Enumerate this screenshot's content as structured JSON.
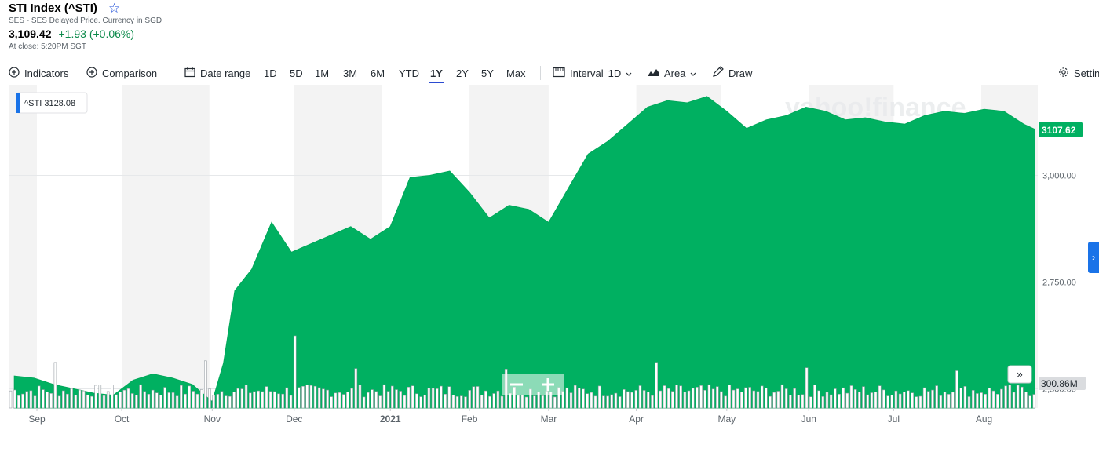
{
  "header": {
    "title": "STI Index (^STI)",
    "source": "SES - SES Delayed Price. Currency in SGD",
    "price": "3,109.42",
    "change": "+1.93 (+0.06%)",
    "close_time": "At close: 5:20PM SGT"
  },
  "toolbar": {
    "indicators": "Indicators",
    "comparison": "Comparison",
    "date_range": "Date range",
    "ranges": [
      "1D",
      "5D",
      "1M",
      "3M",
      "6M",
      "YTD",
      "1Y",
      "2Y",
      "5Y",
      "Max"
    ],
    "active_range": "1Y",
    "interval_label": "Interval",
    "interval_value": "1D",
    "chart_type": "Area",
    "draw": "Draw",
    "settings": "Settings"
  },
  "colors": {
    "area": "#00b061",
    "line": "#00a85a",
    "shade": "#f3f3f3",
    "accent": "#1d4ed8",
    "volume_fill": "#ffffff",
    "volume_stroke": "#9aa0a6"
  },
  "chart_data": {
    "type": "area",
    "series": [
      {
        "name": "^STI",
        "x": [
          "2020-08-24",
          "2020-08-31",
          "2020-09-07",
          "2020-09-14",
          "2020-09-21",
          "2020-09-28",
          "2020-10-05",
          "2020-10-12",
          "2020-10-19",
          "2020-10-26",
          "2020-11-02",
          "2020-11-06",
          "2020-11-10",
          "2020-11-16",
          "2020-11-23",
          "2020-11-30",
          "2020-12-07",
          "2020-12-14",
          "2020-12-21",
          "2020-12-28",
          "2021-01-04",
          "2021-01-11",
          "2021-01-18",
          "2021-01-25",
          "2021-02-01",
          "2021-02-08",
          "2021-02-15",
          "2021-02-22",
          "2021-03-01",
          "2021-03-08",
          "2021-03-15",
          "2021-03-22",
          "2021-03-29",
          "2021-04-05",
          "2021-04-12",
          "2021-04-19",
          "2021-04-26",
          "2021-05-03",
          "2021-05-10",
          "2021-05-17",
          "2021-05-24",
          "2021-05-31",
          "2021-06-07",
          "2021-06-14",
          "2021-06-21",
          "2021-06-28",
          "2021-07-05",
          "2021-07-12",
          "2021-07-19",
          "2021-07-26",
          "2021-08-02",
          "2021-08-09",
          "2021-08-16",
          "2021-08-20"
        ],
        "values": [
          2530,
          2525,
          2510,
          2500,
          2490,
          2485,
          2520,
          2535,
          2525,
          2510,
          2470,
          2560,
          2730,
          2780,
          2890,
          2820,
          2840,
          2860,
          2880,
          2850,
          2880,
          2995,
          3000,
          3010,
          2960,
          2900,
          2930,
          2920,
          2890,
          2970,
          3050,
          3080,
          3120,
          3160,
          3175,
          3170,
          3185,
          3150,
          3110,
          3130,
          3140,
          3160,
          3150,
          3130,
          3135,
          3125,
          3120,
          3140,
          3150,
          3145,
          3155,
          3150,
          3120,
          3108
        ]
      }
    ],
    "volume": {
      "note": "300.86M",
      "last_value_m": 300.86
    },
    "y_ticks": [
      2500,
      2750,
      3000
    ],
    "y_tick_labels": [
      "2,500.00",
      "2,750.00",
      "3,000.00"
    ],
    "ylim": [
      2455,
      3205
    ],
    "x_ticks": [
      "Sep",
      "Oct",
      "Nov",
      "Dec",
      "2021",
      "Feb",
      "Mar",
      "Apr",
      "May",
      "Jun",
      "Jul",
      "Aug"
    ],
    "x_tick_dates": [
      "2020-09-01",
      "2020-10-01",
      "2020-11-02",
      "2020-12-01",
      "2021-01-04",
      "2021-02-01",
      "2021-03-01",
      "2021-04-01",
      "2021-05-03",
      "2021-06-01",
      "2021-07-01",
      "2021-08-02"
    ],
    "legend_label": "^STI",
    "legend_value": "3128.08",
    "current_value": "3107.62",
    "watermark": "yahoo!finance",
    "grid": true,
    "legend_position": "top-left"
  }
}
